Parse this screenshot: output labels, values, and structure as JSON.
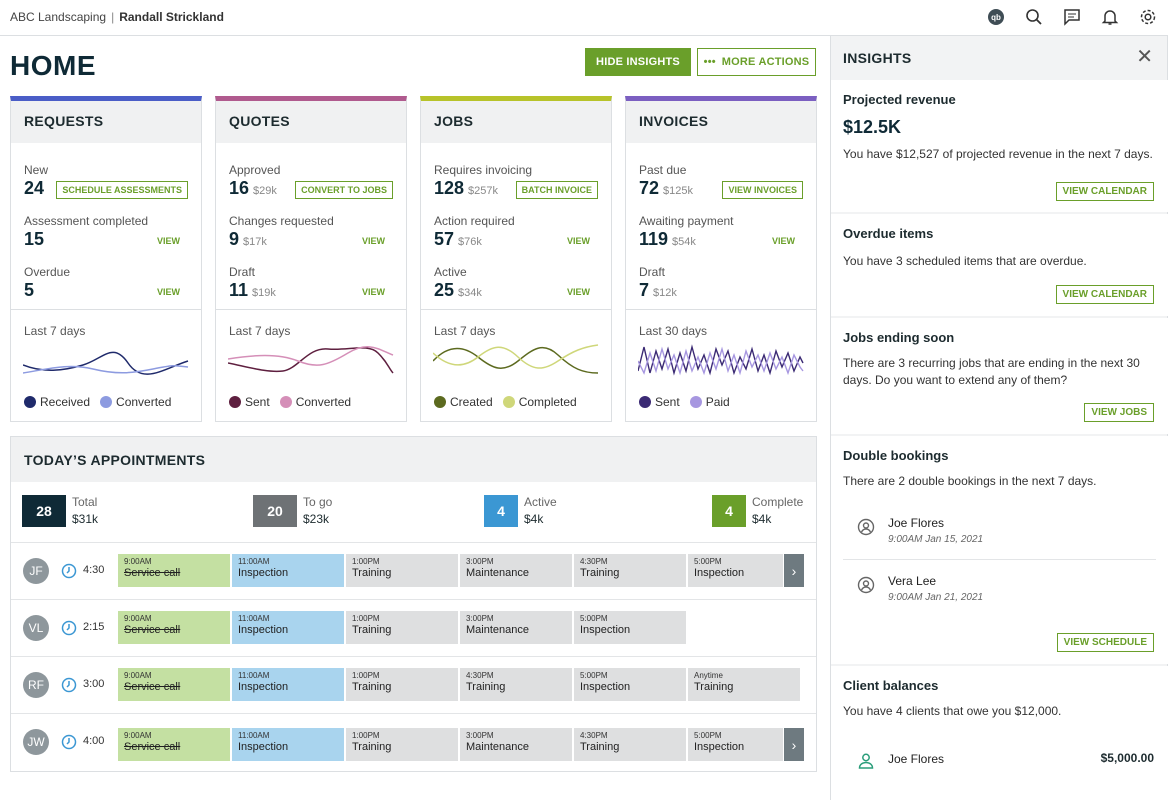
{
  "topbar": {
    "company": "ABC Landscaping",
    "separator": "|",
    "user": "Randall Strickland"
  },
  "page_title": "HOME",
  "actions": {
    "hide_insights": "HIDE INSIGHTS",
    "more_actions": "MORE ACTIONS",
    "more_icon": "•••"
  },
  "colors": {
    "accent": "#6a9f2a",
    "requests": "#4a5dc7",
    "quotes": "#b05a8e",
    "jobs": "#b7c32a",
    "invoices": "#7b5fc1"
  },
  "cards": {
    "requests": {
      "title": "REQUESTS",
      "r1": {
        "label": "New",
        "num": "24",
        "btn": "SCHEDULE ASSESSMENTS"
      },
      "r2": {
        "label": "Assessment completed",
        "num": "15",
        "view": "VIEW"
      },
      "r3": {
        "label": "Overdue",
        "num": "5",
        "view": "VIEW"
      },
      "period": "Last 7 days",
      "legend": [
        "Received",
        "Converted"
      ]
    },
    "quotes": {
      "title": "QUOTES",
      "r1": {
        "label": "Approved",
        "num": "16",
        "sub": "$29k",
        "btn": "CONVERT TO JOBS"
      },
      "r2": {
        "label": "Changes requested",
        "num": "9",
        "sub": "$17k",
        "view": "VIEW"
      },
      "r3": {
        "label": "Draft",
        "num": "11",
        "sub": "$19k",
        "view": "VIEW"
      },
      "period": "Last 7 days",
      "legend": [
        "Sent",
        "Converted"
      ]
    },
    "jobs": {
      "title": "JOBS",
      "r1": {
        "label": "Requires invoicing",
        "num": "128",
        "sub": "$257k",
        "btn": "BATCH INVOICE"
      },
      "r2": {
        "label": "Action required",
        "num": "57",
        "sub": "$76k",
        "view": "VIEW"
      },
      "r3": {
        "label": "Active",
        "num": "25",
        "sub": "$34k",
        "view": "VIEW"
      },
      "period": "Last 7 days",
      "legend": [
        "Created",
        "Completed"
      ]
    },
    "invoices": {
      "title": "INVOICES",
      "r1": {
        "label": "Past due",
        "num": "72",
        "sub": "$125k",
        "btn": "VIEW INVOICES"
      },
      "r2": {
        "label": "Awaiting payment",
        "num": "119",
        "sub": "$54k",
        "view": "VIEW"
      },
      "r3": {
        "label": "Draft",
        "num": "7",
        "sub": "$12k"
      },
      "period": "Last 30 days",
      "legend": [
        "Sent",
        "Paid"
      ]
    }
  },
  "appointments": {
    "title": "TODAY’S APPOINTMENTS",
    "stats": [
      {
        "num": "28",
        "label": "Total",
        "amount": "$31k",
        "color": "#0f2a36"
      },
      {
        "num": "20",
        "label": "To go",
        "amount": "$23k",
        "color": "#6e7275"
      },
      {
        "num": "4",
        "label": "Active",
        "amount": "$4k",
        "color": "#3b97d3"
      },
      {
        "num": "4",
        "label": "Complete",
        "amount": "$4k",
        "color": "#6a9f2a"
      }
    ],
    "rows": [
      {
        "initials": "JF",
        "duration": "4:30",
        "blocks": [
          {
            "time": "9:00AM",
            "name": "Service call"
          },
          {
            "time": "11:00AM",
            "name": "Inspection"
          },
          {
            "time": "1:00PM",
            "name": "Training"
          },
          {
            "time": "3:00PM",
            "name": "Maintenance"
          },
          {
            "time": "4:30PM",
            "name": "Training"
          },
          {
            "time": "5:00PM",
            "name": "Inspection"
          }
        ]
      },
      {
        "initials": "VL",
        "duration": "2:15",
        "blocks": [
          {
            "time": "9:00AM",
            "name": "Service call"
          },
          {
            "time": "11:00AM",
            "name": "Inspection"
          },
          {
            "time": "1:00PM",
            "name": "Training"
          },
          {
            "time": "3:00PM",
            "name": "Maintenance"
          },
          {
            "time": "5:00PM",
            "name": "Inspection"
          }
        ]
      },
      {
        "initials": "RF",
        "duration": "3:00",
        "blocks": [
          {
            "time": "9:00AM",
            "name": "Service call"
          },
          {
            "time": "11:00AM",
            "name": "Inspection"
          },
          {
            "time": "1:00PM",
            "name": "Training"
          },
          {
            "time": "4:30PM",
            "name": "Training"
          },
          {
            "time": "5:00PM",
            "name": "Inspection"
          },
          {
            "time": "Anytime",
            "name": "Training"
          }
        ]
      },
      {
        "initials": "JW",
        "duration": "4:00",
        "blocks": [
          {
            "time": "9:00AM",
            "name": "Service call"
          },
          {
            "time": "11:00AM",
            "name": "Inspection"
          },
          {
            "time": "1:00PM",
            "name": "Training"
          },
          {
            "time": "3:00PM",
            "name": "Maintenance"
          },
          {
            "time": "4:30PM",
            "name": "Training"
          },
          {
            "time": "5:00PM",
            "name": "Inspection"
          }
        ]
      }
    ]
  },
  "insights": {
    "title": "INSIGHTS",
    "projected": {
      "title": "Projected revenue",
      "value": "$12.5K",
      "text": "You have $12,527 of projected revenue in the next 7 days.",
      "btn": "VIEW CALENDAR"
    },
    "overdue": {
      "title": "Overdue items",
      "text": "You have 3 scheduled items that are overdue.",
      "btn": "VIEW CALENDAR"
    },
    "ending": {
      "title": "Jobs ending soon",
      "text": "There are 3 recurring jobs that are ending in the next 30 days. Do you want to extend any of them?",
      "btn": "VIEW JOBS"
    },
    "double": {
      "title": "Double bookings",
      "text": "There are 2 double bookings in the next 7 days.",
      "btn": "VIEW SCHEDULE",
      "people": [
        {
          "name": "Joe Flores",
          "date": "9:00AM Jan 15, 2021"
        },
        {
          "name": "Vera Lee",
          "date": "9:00AM Jan 21, 2021"
        }
      ]
    },
    "balances": {
      "title": "Client balances",
      "text": "You have 4 clients that owe you $12,000.",
      "clients": [
        {
          "name": "Joe Flores",
          "amount": "$5,000.00"
        }
      ]
    }
  }
}
